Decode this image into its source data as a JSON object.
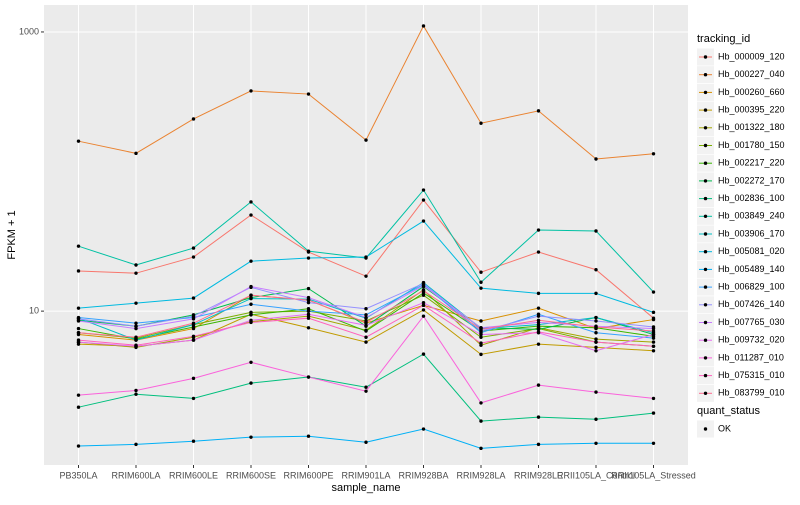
{
  "chart_data": {
    "type": "line",
    "x_label": "sample_name",
    "y_label": "FPKM + 1",
    "log_y": true,
    "grid": true,
    "ylim": [
      0.79,
      1560
    ],
    "yticks": [
      10,
      1000
    ],
    "legend_title": "tracking_id",
    "shape_legend_title": "quant_status",
    "shape_legend_entries": [
      "OK"
    ],
    "categories": [
      "PB350LA",
      "RRIM600LA",
      "RRIM600LE",
      "RRIM600SE",
      "RRIM600PE",
      "RRIM901LA",
      "RRIM928BA",
      "RRIM928LA",
      "RRIM928LE",
      "RRII105LA_Control",
      "RRII105LA_Stressed"
    ],
    "series": [
      {
        "name": "Hb_000009_120",
        "color": "#F8766D",
        "values": [
          19.4,
          18.7,
          24.4,
          48.8,
          26.5,
          17.8,
          62.5,
          19.0,
          26.5,
          19.8,
          8.9
        ]
      },
      {
        "name": "Hb_000227_040",
        "color": "#EA8331",
        "values": [
          165,
          135,
          238,
          378,
          359,
          168,
          1104,
          222,
          272,
          123,
          134
        ]
      },
      {
        "name": "Hb_000260_660",
        "color": "#D89000",
        "values": [
          6.8,
          6.2,
          7.5,
          13.0,
          12.0,
          8.2,
          11.0,
          8.5,
          10.5,
          7.5,
          8.7
        ]
      },
      {
        "name": "Hb_000395_220",
        "color": "#C09B00",
        "values": [
          5.8,
          5.6,
          6.2,
          9.5,
          7.6,
          6.0,
          10.2,
          4.9,
          5.8,
          5.5,
          5.2
        ]
      },
      {
        "name": "Hb_001322_180",
        "color": "#A3A500",
        "values": [
          6.0,
          5.5,
          6.5,
          8.4,
          9.2,
          7.3,
          14.2,
          5.7,
          7.6,
          6.3,
          6.0
        ]
      },
      {
        "name": "Hb_001780_150",
        "color": "#7CAE00",
        "values": [
          7.0,
          6.4,
          8.0,
          9.8,
          10.0,
          8.5,
          13.0,
          6.5,
          7.5,
          6.0,
          5.6
        ]
      },
      {
        "name": "Hb_002217_220",
        "color": "#39B600",
        "values": [
          7.5,
          6.3,
          7.7,
          9.4,
          10.4,
          7.2,
          13.5,
          7.2,
          7.8,
          7.6,
          6.6
        ]
      },
      {
        "name": "Hb_002272_170",
        "color": "#00BB4E",
        "values": [
          8.6,
          7.8,
          9.4,
          12.5,
          14.5,
          7.8,
          15.0,
          7.6,
          7.4,
          9.0,
          6.8
        ]
      },
      {
        "name": "Hb_002836_100",
        "color": "#00BF7D",
        "values": [
          2.05,
          2.54,
          2.37,
          3.05,
          3.37,
          2.85,
          4.92,
          1.63,
          1.74,
          1.68,
          1.86
        ]
      },
      {
        "name": "Hb_003849_240",
        "color": "#00C1A3",
        "values": [
          29.2,
          21.4,
          28.3,
          60.6,
          26.9,
          24.0,
          73.7,
          16.1,
          38.1,
          37.5,
          13.7
        ]
      },
      {
        "name": "Hb_003906_170",
        "color": "#00BFC4",
        "values": [
          8.9,
          6.2,
          8.0,
          12.3,
          12.2,
          8.9,
          16.0,
          7.5,
          8.0,
          9.0,
          7.0
        ]
      },
      {
        "name": "Hb_005081_020",
        "color": "#00BAE0",
        "values": [
          10.5,
          11.4,
          12.4,
          22.8,
          24.0,
          24.4,
          44.2,
          14.6,
          13.4,
          13.4,
          9.8
        ]
      },
      {
        "name": "Hb_005489_140",
        "color": "#00B0F6",
        "values": [
          1.08,
          1.11,
          1.17,
          1.25,
          1.27,
          1.15,
          1.43,
          1.04,
          1.11,
          1.13,
          1.13
        ]
      },
      {
        "name": "Hb_006829_100",
        "color": "#35A2FF",
        "values": [
          9.0,
          8.2,
          9.0,
          11.2,
          10.0,
          9.4,
          15.5,
          7.0,
          9.5,
          7.0,
          6.4
        ]
      },
      {
        "name": "Hb_007426_140",
        "color": "#9590FF",
        "values": [
          8.8,
          7.8,
          9.2,
          14.8,
          11.5,
          10.4,
          15.8,
          7.2,
          9.2,
          8.5,
          7.7
        ]
      },
      {
        "name": "Hb_007765_030",
        "color": "#C77CFF",
        "values": [
          8.5,
          7.5,
          8.8,
          15.0,
          12.5,
          9.0,
          15.2,
          7.6,
          8.3,
          7.8,
          7.5
        ]
      },
      {
        "name": "Hb_009732_020",
        "color": "#E76BF3",
        "values": [
          6.0,
          5.6,
          6.2,
          8.6,
          9.5,
          7.9,
          11.5,
          6.8,
          7.0,
          5.2,
          6.8
        ]
      },
      {
        "name": "Hb_011287_010",
        "color": "#FA62DB",
        "values": [
          2.5,
          2.7,
          3.3,
          4.3,
          3.37,
          2.67,
          9.2,
          2.2,
          2.95,
          2.63,
          2.37
        ]
      },
      {
        "name": "Hb_075315_010",
        "color": "#FF62BC",
        "values": [
          6.2,
          5.7,
          6.6,
          8.3,
          8.9,
          6.5,
          11.0,
          5.9,
          7.1,
          6.0,
          5.6
        ]
      },
      {
        "name": "Hb_083799_010",
        "color": "#FF6C91",
        "values": [
          7.0,
          6.5,
          8.2,
          13.0,
          12.0,
          8.3,
          14.0,
          7.4,
          8.6,
          7.7,
          7.2
        ]
      }
    ]
  }
}
